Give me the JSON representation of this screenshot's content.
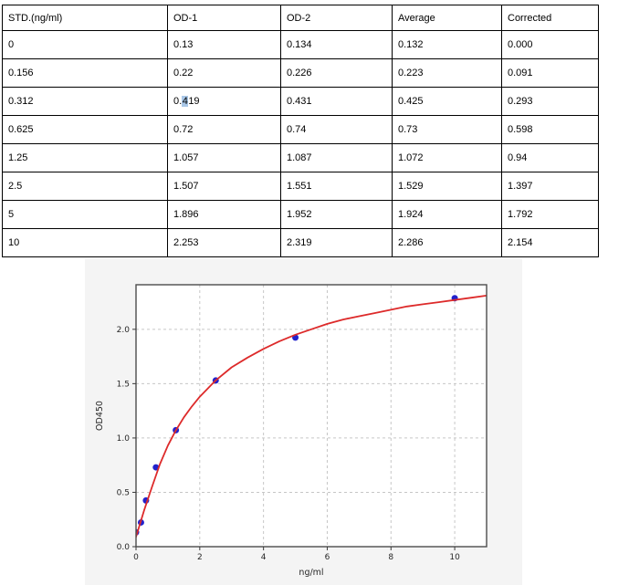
{
  "colors": {
    "panel_bg": "#f4f4f4",
    "plot_bg": "#ffffff",
    "spine": "#4d4d4d",
    "grid": "#c6c6c6",
    "tick": "#3a3a3a",
    "tick_label": "#262626",
    "point": "#2222cc",
    "curve": "#dd2a2a",
    "table_border": "#000000",
    "selection_highlight": "#a9c7e7"
  },
  "table": {
    "columns": [
      "STD.(ng/ml)",
      "OD-1",
      "OD-2",
      "Average",
      "Corrected"
    ],
    "rows": [
      [
        "0",
        "0.13",
        "0.134",
        "0.132",
        "0.000"
      ],
      [
        "0.156",
        "0.22",
        "0.226",
        "0.223",
        "0.091"
      ],
      [
        "0.312",
        "0.419",
        "0.431",
        "0.425",
        "0.293"
      ],
      [
        "0.625",
        "0.72",
        "0.74",
        "0.73",
        "0.598"
      ],
      [
        "1.25",
        "1.057",
        "1.087",
        "1.072",
        "0.94"
      ],
      [
        "2.5",
        "1.507",
        "1.551",
        "1.529",
        "1.397"
      ],
      [
        "5",
        "1.896",
        "1.952",
        "1.924",
        "1.792"
      ],
      [
        "10",
        "2.253",
        "2.319",
        "2.286",
        "2.154"
      ]
    ],
    "selection": {
      "row": 2,
      "col": 1,
      "before": "0.",
      "highlighted": "4",
      "after": "19"
    }
  },
  "chart_data": {
    "type": "scatter",
    "title": "",
    "xlabel": "ng/ml",
    "ylabel": "OD450",
    "xlim": [
      0,
      11
    ],
    "ylim": [
      0,
      2.41
    ],
    "xticks": [
      0,
      2,
      4,
      6,
      8,
      10
    ],
    "xtick_labels": [
      "0",
      "2",
      "4",
      "6",
      "8",
      "10"
    ],
    "yticks": [
      0.0,
      0.5,
      1.0,
      1.5,
      2.0
    ],
    "ytick_labels": [
      "0.0",
      "0.5",
      "1.0",
      "1.5",
      "2.0"
    ],
    "grid": "dashed",
    "legend": "none",
    "series": [
      {
        "name": "standards",
        "type": "scatter",
        "color": "#2222cc",
        "x": [
          0,
          0.156,
          0.312,
          0.625,
          1.25,
          2.5,
          5,
          10
        ],
        "y": [
          0.132,
          0.223,
          0.425,
          0.73,
          1.072,
          1.529,
          1.924,
          2.286
        ]
      },
      {
        "name": "fitted-curve",
        "type": "line",
        "color": "#dd2a2a",
        "x": [
          0,
          0.25,
          0.5,
          0.75,
          1,
          1.25,
          1.5,
          1.75,
          2,
          2.5,
          3,
          3.5,
          4,
          4.5,
          5,
          5.5,
          6,
          6.5,
          7,
          7.5,
          8,
          8.5,
          9,
          9.5,
          10,
          10.5,
          11
        ],
        "y": [
          0.09,
          0.33,
          0.55,
          0.76,
          0.93,
          1.07,
          1.19,
          1.29,
          1.38,
          1.53,
          1.65,
          1.74,
          1.82,
          1.89,
          1.95,
          2.0,
          2.05,
          2.09,
          2.12,
          2.15,
          2.18,
          2.21,
          2.23,
          2.25,
          2.27,
          2.29,
          2.31
        ]
      }
    ]
  }
}
